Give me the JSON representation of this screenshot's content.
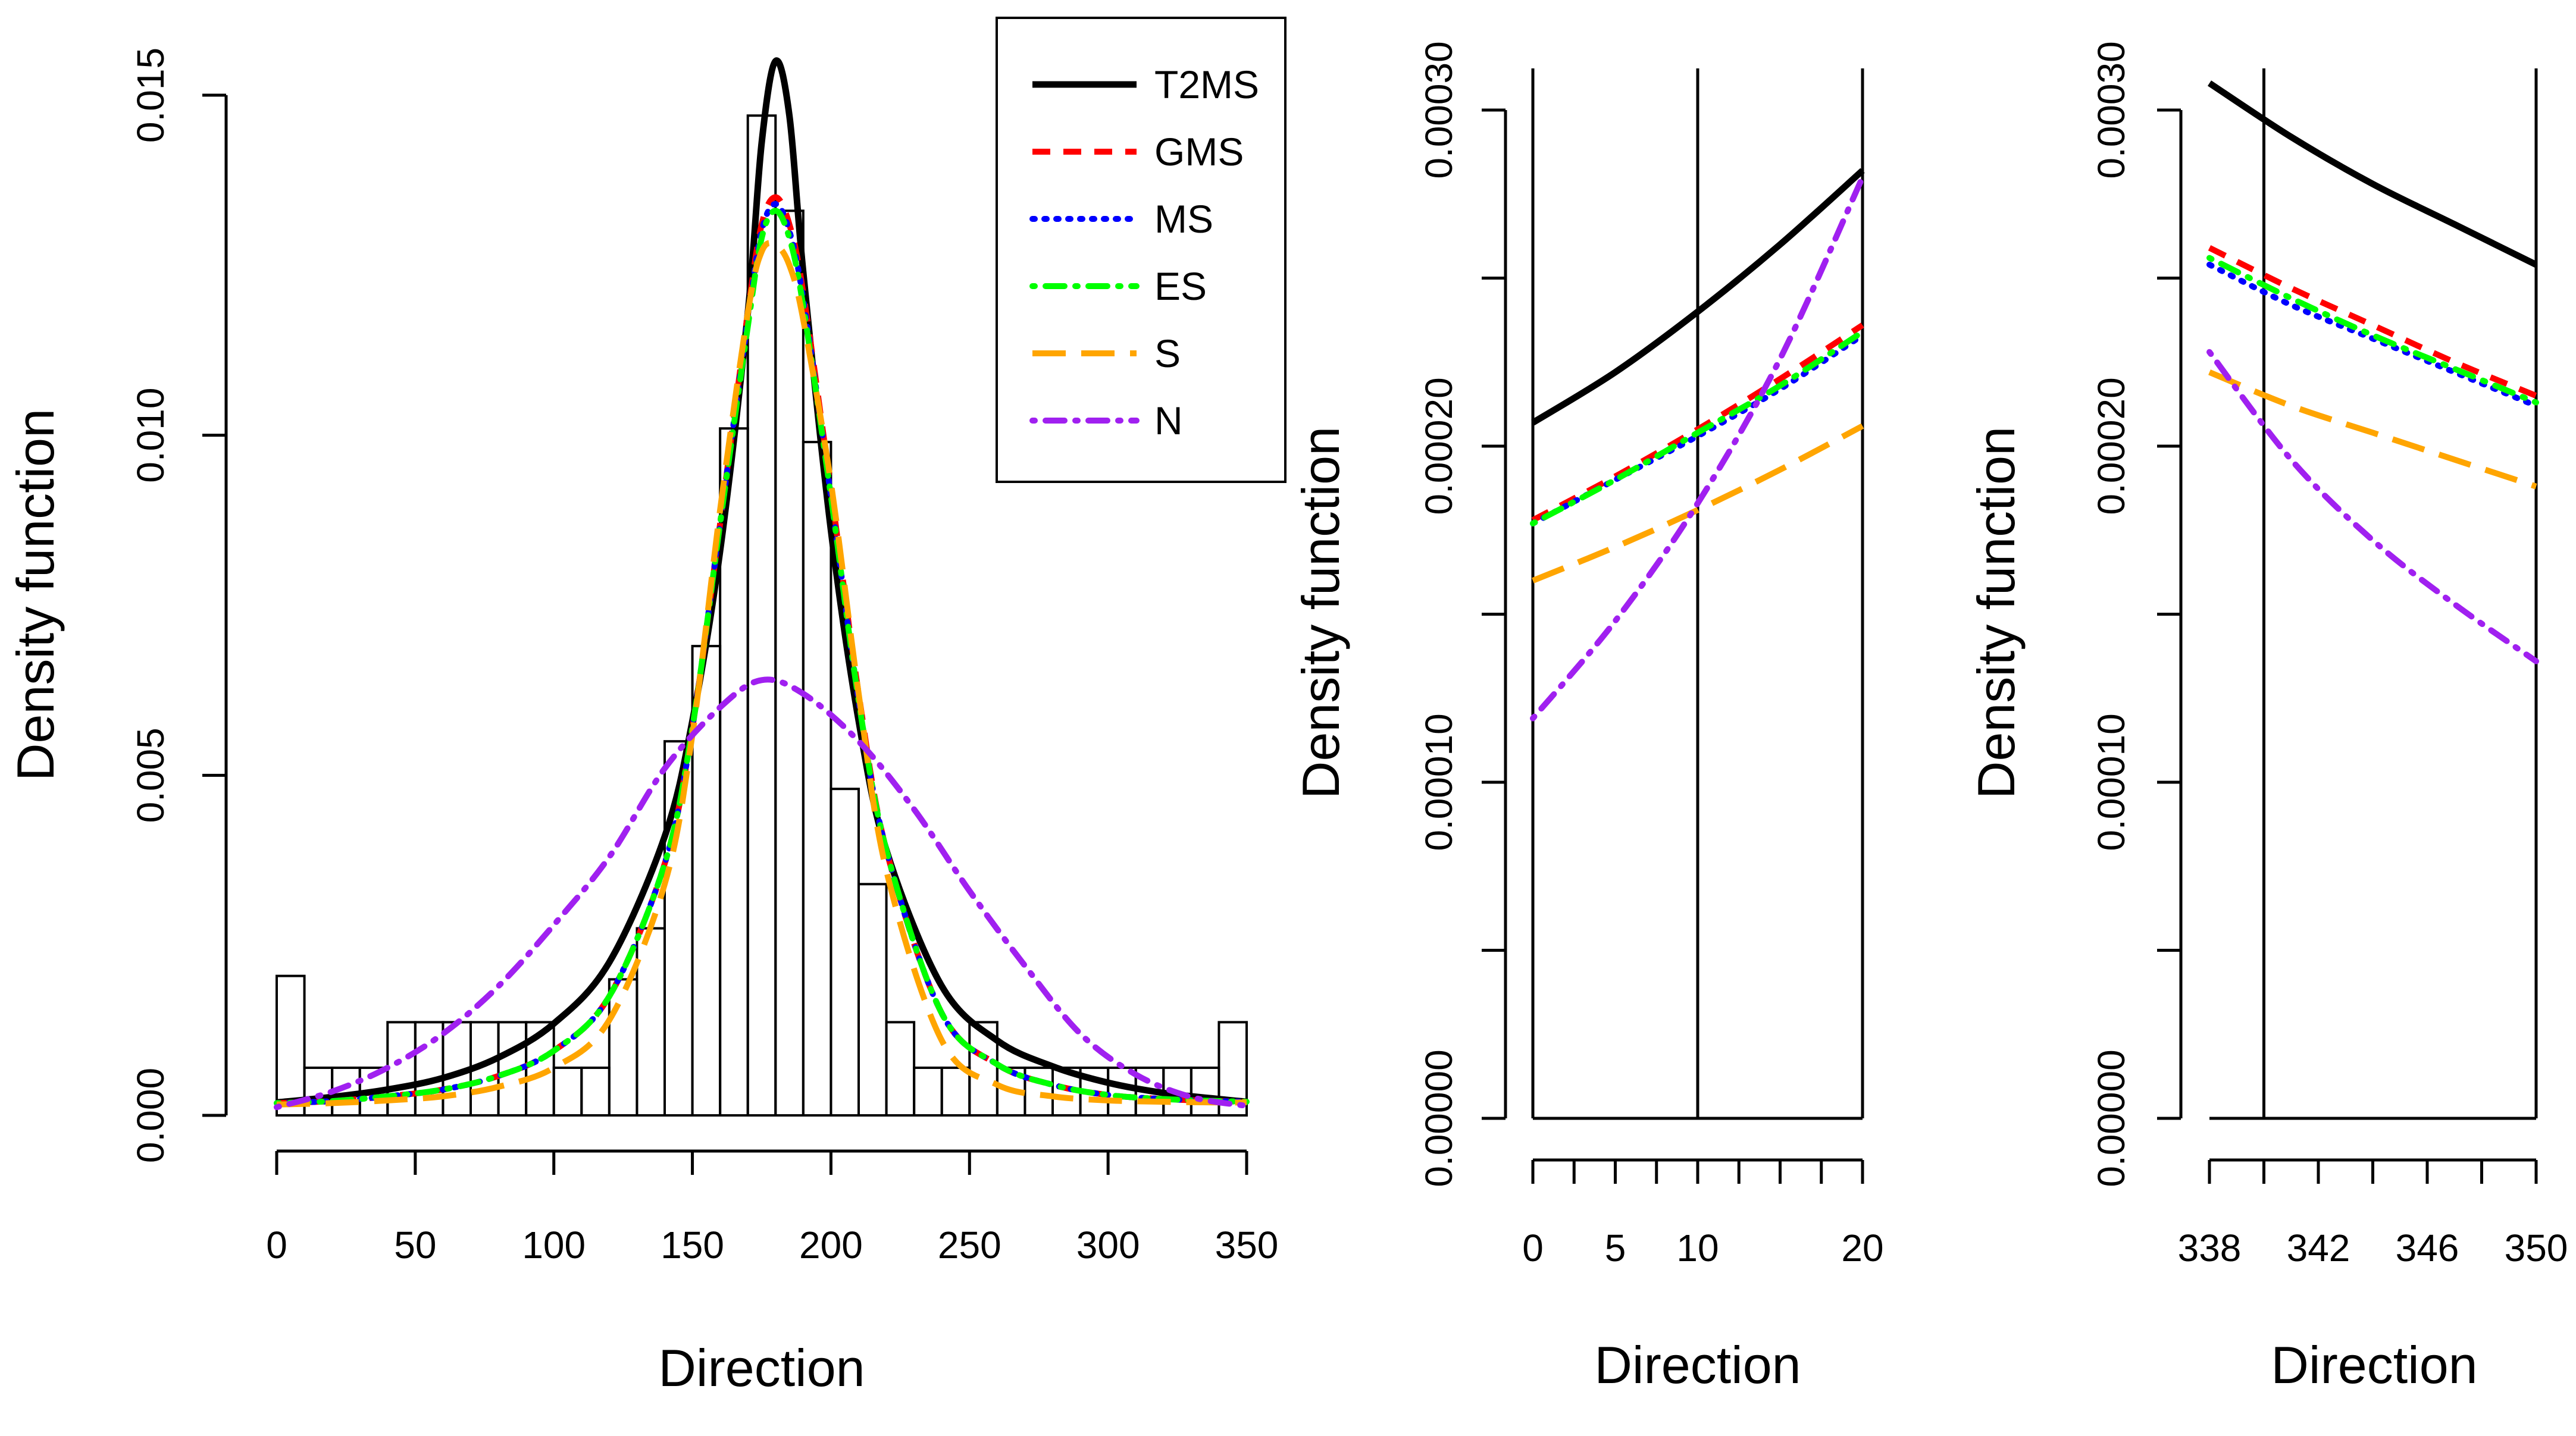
{
  "colors": {
    "T2MS": "#000000",
    "GMS": "#ff0000",
    "MS": "#0000ff",
    "ES": "#00ff00",
    "S": "#ffa500",
    "N": "#a020f0"
  },
  "chart_data": [
    {
      "type": "histogram+density",
      "title": "",
      "xlabel": "Direction",
      "ylabel": "Density function",
      "xlim": [
        0,
        350
      ],
      "ylim": [
        0,
        0.015
      ],
      "xticks": [
        "0",
        "50",
        "100",
        "150",
        "200",
        "250",
        "300",
        "350"
      ],
      "xtick_values": [
        0,
        50,
        100,
        150,
        200,
        250,
        300,
        350
      ],
      "yticks": [
        "0.000",
        "0.005",
        "0.010",
        "0.015"
      ],
      "ytick_values": [
        0,
        0.005,
        0.01,
        0.015
      ],
      "histogram": {
        "bin_width": 10,
        "bin_starts": [
          0,
          10,
          20,
          30,
          40,
          50,
          60,
          70,
          80,
          90,
          100,
          110,
          120,
          130,
          140,
          150,
          160,
          170,
          180,
          190,
          200,
          210,
          220,
          230,
          240,
          250,
          260,
          270,
          280,
          290,
          300,
          310,
          320,
          330,
          340
        ],
        "density": [
          0.00205,
          0.0007,
          0.0007,
          0.0007,
          0.00137,
          0.00137,
          0.00137,
          0.00137,
          0.00137,
          0.00137,
          0.0007,
          0.0007,
          0.002,
          0.00275,
          0.0055,
          0.0069,
          0.0101,
          0.0147,
          0.0133,
          0.0099,
          0.0048,
          0.0034,
          0.00137,
          0.0007,
          0.0007,
          0.00137,
          0.0007,
          0.0007,
          0.0007,
          0.0007,
          0.0007,
          0.0007,
          0.0007,
          0.0007,
          0.00137
        ]
      },
      "series": [
        {
          "name": "T2MS",
          "style": "solid",
          "x": [
            0,
            20,
            40,
            60,
            80,
            100,
            120,
            140,
            150,
            160,
            170,
            175,
            180,
            185,
            190,
            200,
            210,
            220,
            240,
            260,
            280,
            300,
            320,
            340,
            350
          ],
          "values": [
            0.00019,
            0.00027,
            0.00038,
            0.00055,
            0.00085,
            0.00135,
            0.00225,
            0.0041,
            0.0058,
            0.0083,
            0.0118,
            0.0143,
            0.0155,
            0.0147,
            0.0124,
            0.0086,
            0.0058,
            0.0039,
            0.0019,
            0.0011,
            0.00072,
            0.00048,
            0.00033,
            0.00024,
            0.0002
          ]
        },
        {
          "name": "GMS",
          "style": "dashed",
          "x": [
            0,
            20,
            40,
            60,
            80,
            100,
            120,
            140,
            150,
            160,
            170,
            175,
            180,
            185,
            190,
            200,
            210,
            220,
            240,
            260,
            280,
            300,
            320,
            340,
            350
          ],
          "values": [
            0.00018,
            0.00021,
            0.00028,
            0.00038,
            0.00058,
            0.00095,
            0.00175,
            0.0037,
            0.0057,
            0.0087,
            0.0118,
            0.0131,
            0.0135,
            0.0131,
            0.0121,
            0.0092,
            0.0062,
            0.0039,
            0.0015,
            0.00075,
            0.00045,
            0.0003,
            0.00024,
            0.00021,
            0.0002
          ]
        },
        {
          "name": "MS",
          "style": "dotted",
          "x": [
            0,
            20,
            40,
            60,
            80,
            100,
            120,
            140,
            150,
            160,
            170,
            175,
            180,
            185,
            190,
            200,
            210,
            220,
            240,
            260,
            280,
            300,
            320,
            340,
            350
          ],
          "values": [
            0.00018,
            0.00021,
            0.00028,
            0.00038,
            0.00058,
            0.00095,
            0.00175,
            0.0037,
            0.0057,
            0.0087,
            0.0117,
            0.013,
            0.0134,
            0.013,
            0.012,
            0.0091,
            0.0061,
            0.0039,
            0.0015,
            0.00075,
            0.00045,
            0.0003,
            0.00024,
            0.00021,
            0.0002
          ]
        },
        {
          "name": "ES",
          "style": "dotdash",
          "x": [
            0,
            20,
            40,
            60,
            80,
            100,
            120,
            140,
            150,
            160,
            170,
            175,
            180,
            185,
            190,
            200,
            210,
            220,
            240,
            260,
            280,
            300,
            320,
            340,
            350
          ],
          "values": [
            0.00018,
            0.00021,
            0.00028,
            0.00038,
            0.00058,
            0.00095,
            0.00175,
            0.0037,
            0.0057,
            0.0087,
            0.0116,
            0.0129,
            0.0133,
            0.0129,
            0.0119,
            0.0091,
            0.0061,
            0.0039,
            0.0015,
            0.00075,
            0.00045,
            0.0003,
            0.00024,
            0.00021,
            0.0002
          ]
        },
        {
          "name": "S",
          "style": "longdash",
          "x": [
            0,
            20,
            40,
            60,
            80,
            100,
            120,
            140,
            150,
            160,
            170,
            175,
            180,
            185,
            190,
            200,
            210,
            220,
            240,
            260,
            280,
            300,
            320,
            340,
            350
          ],
          "values": [
            0.00016,
            0.00018,
            0.00022,
            0.00028,
            0.00042,
            0.0007,
            0.0014,
            0.0034,
            0.0056,
            0.0089,
            0.0118,
            0.0127,
            0.0128,
            0.0125,
            0.0117,
            0.0093,
            0.0062,
            0.0036,
            0.0011,
            0.00045,
            0.00028,
            0.00022,
            0.0002,
            0.00019,
            0.00019
          ]
        },
        {
          "name": "N",
          "style": "dotdash",
          "x": [
            0,
            20,
            40,
            60,
            80,
            100,
            120,
            140,
            160,
            175,
            190,
            210,
            230,
            250,
            270,
            290,
            310,
            330,
            350
          ],
          "values": [
            0.00012,
            0.00035,
            0.0007,
            0.0012,
            0.0019,
            0.0028,
            0.0038,
            0.0051,
            0.006,
            0.0064,
            0.0062,
            0.0055,
            0.0045,
            0.0033,
            0.0022,
            0.0012,
            0.0006,
            0.00027,
            0.00014
          ]
        }
      ]
    },
    {
      "type": "line",
      "title": "",
      "xlabel": "Direction",
      "ylabel": "Density function",
      "xlim": [
        0,
        20
      ],
      "ylim": [
        0,
        0.0003
      ],
      "xticks": [
        "0",
        "5",
        "10",
        "20"
      ],
      "xtick_values": [
        0,
        5,
        10,
        20
      ],
      "xminor_ticks": [
        0,
        2.5,
        5,
        7.5,
        10,
        12.5,
        15,
        17.5,
        20
      ],
      "yticks": [
        "0.00000",
        "0.00010",
        "0.00020",
        "0.00030"
      ],
      "ytick_values": [
        0,
        0.0001,
        0.0002,
        0.0003
      ],
      "yminor_ticks": [
        0,
        5e-05,
        0.0001,
        0.00015,
        0.0002,
        0.00025,
        0.0003
      ],
      "vlines": [
        0,
        10,
        20
      ],
      "series": [
        {
          "name": "T2MS",
          "style": "solid",
          "x": [
            0,
            5,
            10,
            15,
            20
          ],
          "values": [
            0.000207,
            0.000222,
            0.00024,
            0.00026,
            0.000282
          ]
        },
        {
          "name": "GMS",
          "style": "dashed",
          "x": [
            0,
            5,
            10,
            15,
            20
          ],
          "values": [
            0.000178,
            0.000191,
            0.000205,
            0.00022,
            0.000236
          ]
        },
        {
          "name": "MS",
          "style": "dotted",
          "x": [
            0,
            5,
            10,
            15,
            20
          ],
          "values": [
            0.000177,
            0.00019,
            0.000203,
            0.000217,
            0.000233
          ]
        },
        {
          "name": "ES",
          "style": "dotdash",
          "x": [
            0,
            5,
            10,
            15,
            20
          ],
          "values": [
            0.000177,
            0.00019,
            0.000204,
            0.000218,
            0.000234
          ]
        },
        {
          "name": "S",
          "style": "longdash",
          "x": [
            0,
            5,
            10,
            15,
            20
          ],
          "values": [
            0.00016,
            0.00017,
            0.000181,
            0.000193,
            0.000206
          ]
        },
        {
          "name": "N",
          "style": "dotdash",
          "x": [
            0,
            5,
            10,
            15,
            20
          ],
          "values": [
            0.000119,
            0.000148,
            0.000183,
            0.000226,
            0.00028
          ]
        }
      ]
    },
    {
      "type": "line",
      "title": "",
      "xlabel": "Direction",
      "ylabel": "Density function",
      "xlim": [
        338,
        350
      ],
      "ylim": [
        0,
        0.0003
      ],
      "xticks": [
        "338",
        "342",
        "346",
        "350"
      ],
      "xtick_values": [
        338,
        342,
        346,
        350
      ],
      "xminor_ticks": [
        338,
        340,
        342,
        344,
        346,
        348,
        350
      ],
      "yticks": [
        "0.00000",
        "0.00010",
        "0.00020",
        "0.00030"
      ],
      "ytick_values": [
        0,
        0.0001,
        0.0002,
        0.0003
      ],
      "yminor_ticks": [
        0,
        5e-05,
        0.0001,
        0.00015,
        0.0002,
        0.00025,
        0.0003
      ],
      "vlines": [
        340,
        350
      ],
      "series": [
        {
          "name": "T2MS",
          "style": "solid",
          "x": [
            338,
            341,
            344,
            347,
            350
          ],
          "values": [
            0.000308,
            0.000292,
            0.000278,
            0.000266,
            0.000254
          ]
        },
        {
          "name": "GMS",
          "style": "dashed",
          "x": [
            338,
            341,
            344,
            347,
            350
          ],
          "values": [
            0.000259,
            0.000247,
            0.000236,
            0.000225,
            0.000215
          ]
        },
        {
          "name": "MS",
          "style": "dotted",
          "x": [
            338,
            341,
            344,
            347,
            350
          ],
          "values": [
            0.000254,
            0.000242,
            0.000232,
            0.000222,
            0.000212
          ]
        },
        {
          "name": "ES",
          "style": "dotdash",
          "x": [
            338,
            341,
            344,
            347,
            350
          ],
          "values": [
            0.000256,
            0.000244,
            0.000233,
            0.000223,
            0.000213
          ]
        },
        {
          "name": "S",
          "style": "longdash",
          "x": [
            338,
            341,
            344,
            347,
            350
          ],
          "values": [
            0.000222,
            0.000212,
            0.000204,
            0.000196,
            0.000188
          ]
        },
        {
          "name": "N",
          "style": "dotdash",
          "x": [
            338,
            341,
            344,
            347,
            350
          ],
          "values": [
            0.000228,
            0.000196,
            0.000172,
            0.000153,
            0.000136
          ]
        }
      ]
    }
  ],
  "legend": {
    "position": "top-right of first panel",
    "entries": [
      "T2MS",
      "GMS",
      "MS",
      "ES",
      "S",
      "N"
    ]
  }
}
